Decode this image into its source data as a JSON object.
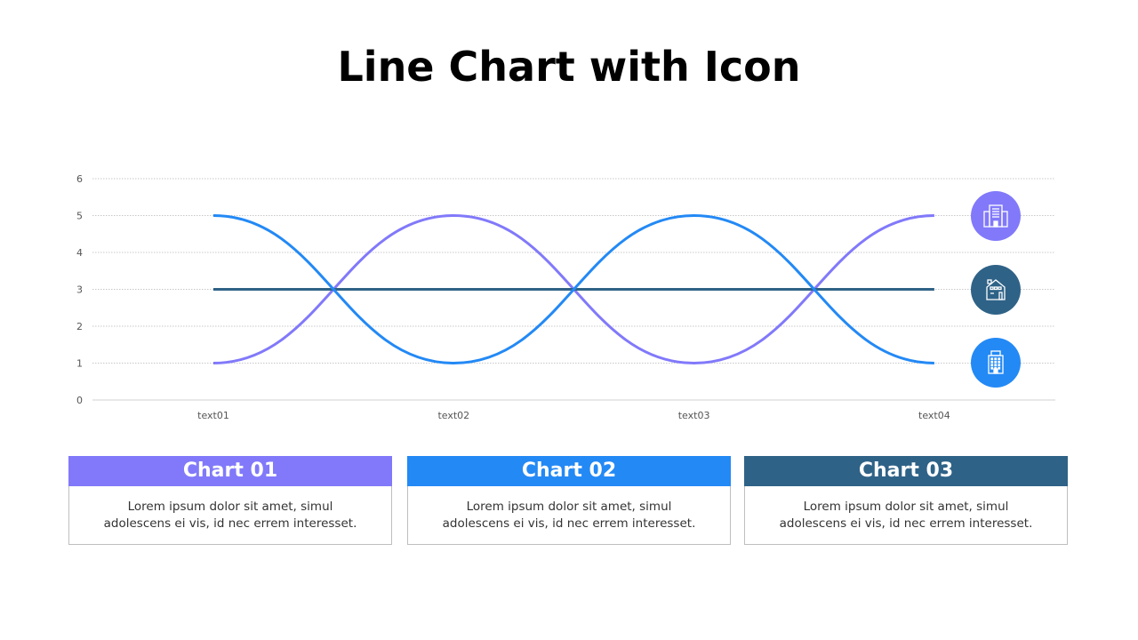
{
  "title": "Line Chart with Icon",
  "chart_data": {
    "type": "line",
    "categories": [
      "text01",
      "text02",
      "text03",
      "text04"
    ],
    "ylim": [
      0,
      6
    ],
    "yticks": [
      0,
      1,
      2,
      3,
      4,
      5,
      6
    ],
    "grid": true,
    "smooth": true,
    "series": [
      {
        "values": [
          1,
          5,
          1,
          5
        ],
        "color": "#8179FA",
        "icon": "office-buildings-icon"
      },
      {
        "values": [
          3,
          3,
          3,
          3
        ],
        "color": "#2F6287",
        "icon": "house-icon"
      },
      {
        "values": [
          5,
          1,
          5,
          1
        ],
        "color": "#2389F5",
        "icon": "office-tower-icon"
      }
    ]
  },
  "cards": [
    {
      "title": "Chart 01",
      "line1": "Lorem ipsum dolor sit amet, simul",
      "line2": "adolescens ei vis, id nec errem  interesset.",
      "color": "#8179FA"
    },
    {
      "title": "Chart 02",
      "line1": "Lorem ipsum dolor sit amet, simul",
      "line2": "adolescens ei vis, id nec errem  interesset.",
      "color": "#2389F5"
    },
    {
      "title": "Chart 03",
      "line1": "Lorem ipsum dolor sit amet, simul",
      "line2": "adolescens ei vis, id nec errem  interesset.",
      "color": "#2F6287"
    }
  ]
}
